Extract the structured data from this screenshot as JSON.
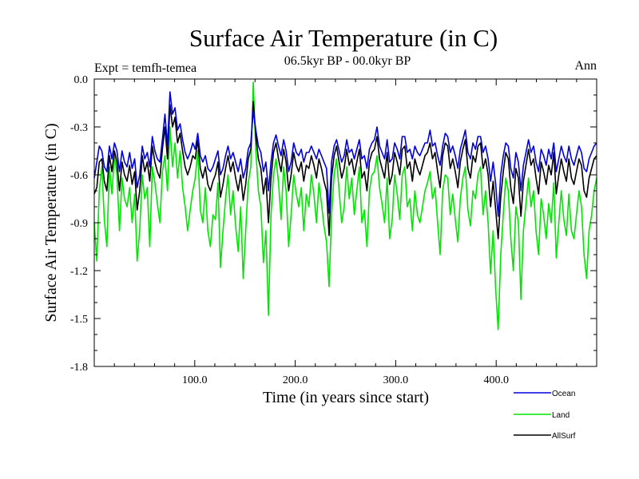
{
  "chart_data": {
    "type": "line",
    "title": "Surface Air Temperature (in C)",
    "subtitle_left": "Expt = temfh-temea",
    "subtitle_center": "06.5kyr BP - 00.0kyr BP",
    "subtitle_right": "Ann",
    "xlabel": "Time (in years since start)",
    "ylabel": "Surface Air Temperature (in C)",
    "xlim": [
      0,
      500
    ],
    "ylim": [
      -1.8,
      0.0
    ],
    "xticks": [
      100,
      200,
      300,
      400
    ],
    "xtick_labels": [
      "100.0",
      "200.0",
      "300.0",
      "400.0"
    ],
    "yticks": [
      0.0,
      -0.3,
      -0.6,
      -0.9,
      -1.2,
      -1.5,
      -1.8
    ],
    "ytick_labels": [
      "0.0",
      "-0.3",
      "-0.6",
      "-0.9",
      "-1.2",
      "-1.5",
      "-1.8"
    ],
    "series": [
      {
        "name": "Land",
        "color": "#00e600",
        "values": [
          -0.9,
          -1.14,
          -0.7,
          -0.55,
          -0.88,
          -1.05,
          -0.55,
          -0.72,
          -0.48,
          -0.6,
          -0.95,
          -0.62,
          -0.75,
          -0.8,
          -0.68,
          -0.9,
          -0.72,
          -1.14,
          -0.95,
          -0.6,
          -0.75,
          -0.68,
          -1.05,
          -0.55,
          -0.65,
          -0.78,
          -0.9,
          -0.58,
          -0.48,
          -0.7,
          -0.3,
          -0.55,
          -0.4,
          -0.62,
          -0.45,
          -0.68,
          -0.8,
          -0.95,
          -0.82,
          -0.7,
          -0.62,
          -0.45,
          -0.82,
          -0.9,
          -0.68,
          -0.95,
          -1.05,
          -0.85,
          -0.88,
          -0.65,
          -1.18,
          -0.95,
          -0.75,
          -0.6,
          -0.85,
          -0.7,
          -0.92,
          -1.08,
          -0.8,
          -1.25,
          -0.95,
          -0.65,
          -0.55,
          -0.02,
          -0.45,
          -0.7,
          -0.8,
          -1.15,
          -0.95,
          -1.48,
          -0.85,
          -0.6,
          -0.5,
          -0.65,
          -0.88,
          -0.55,
          -0.7,
          -1.05,
          -0.85,
          -0.6,
          -0.72,
          -0.8,
          -0.68,
          -0.95,
          -0.72,
          -0.8,
          -0.6,
          -0.72,
          -0.9,
          -0.65,
          -0.78,
          -0.92,
          -1.02,
          -1.3,
          -0.85,
          -0.6,
          -0.5,
          -0.7,
          -0.9,
          -0.8,
          -0.55,
          -0.75,
          -0.62,
          -0.85,
          -0.7,
          -0.55,
          -0.9,
          -0.82,
          -1.05,
          -0.7,
          -0.6,
          -0.58,
          -0.48,
          -0.68,
          -0.78,
          -0.9,
          -0.62,
          -1.0,
          -0.88,
          -0.6,
          -0.72,
          -0.88,
          -0.6,
          -0.55,
          -0.8,
          -0.75,
          -0.95,
          -0.7,
          -0.85,
          -0.9,
          -0.8,
          -0.7,
          -0.65,
          -0.58,
          -0.75,
          -0.68,
          -0.9,
          -1.1,
          -0.7,
          -0.6,
          -0.62,
          -0.85,
          -0.72,
          -0.88,
          -1.02,
          -0.75,
          -0.62,
          -0.55,
          -0.82,
          -0.92,
          -0.7,
          -0.75,
          -0.6,
          -0.55,
          -0.85,
          -0.7,
          -0.9,
          -1.22,
          -0.95,
          -1.32,
          -1.57,
          -1.1,
          -0.85,
          -0.62,
          -0.7,
          -1.0,
          -1.2,
          -0.8,
          -0.9,
          -1.38,
          -0.95,
          -0.78,
          -0.62,
          -0.8,
          -0.7,
          -0.95,
          -1.1,
          -0.75,
          -0.85,
          -1.0,
          -0.78,
          -0.9,
          -0.65,
          -1.12,
          -0.9,
          -0.7,
          -0.88,
          -0.98,
          -0.72,
          -0.95,
          -1.0,
          -0.85,
          -0.7,
          -0.8,
          -1.1,
          -1.25,
          -0.95,
          -0.85,
          -0.7,
          -0.62
        ]
      },
      {
        "name": "AllSurf",
        "color": "#000000",
        "values": [
          -0.72,
          -0.68,
          -0.52,
          -0.5,
          -0.64,
          -0.7,
          -0.48,
          -0.58,
          -0.45,
          -0.52,
          -0.7,
          -0.52,
          -0.6,
          -0.64,
          -0.54,
          -0.66,
          -0.58,
          -0.82,
          -0.7,
          -0.48,
          -0.58,
          -0.52,
          -0.64,
          -0.42,
          -0.52,
          -0.58,
          -0.62,
          -0.44,
          -0.3,
          -0.5,
          -0.16,
          -0.3,
          -0.24,
          -0.4,
          -0.34,
          -0.45,
          -0.55,
          -0.6,
          -0.55,
          -0.48,
          -0.5,
          -0.38,
          -0.56,
          -0.62,
          -0.55,
          -0.66,
          -0.7,
          -0.64,
          -0.6,
          -0.52,
          -0.74,
          -0.66,
          -0.56,
          -0.48,
          -0.58,
          -0.52,
          -0.62,
          -0.7,
          -0.6,
          -0.76,
          -0.66,
          -0.5,
          -0.44,
          -0.14,
          -0.36,
          -0.5,
          -0.56,
          -0.72,
          -0.62,
          -0.9,
          -0.62,
          -0.46,
          -0.4,
          -0.5,
          -0.58,
          -0.44,
          -0.52,
          -0.7,
          -0.6,
          -0.46,
          -0.54,
          -0.58,
          -0.52,
          -0.64,
          -0.54,
          -0.56,
          -0.48,
          -0.54,
          -0.62,
          -0.5,
          -0.56,
          -0.64,
          -0.7,
          -0.98,
          -0.62,
          -0.48,
          -0.42,
          -0.52,
          -0.62,
          -0.56,
          -0.44,
          -0.54,
          -0.5,
          -0.6,
          -0.52,
          -0.44,
          -0.62,
          -0.58,
          -0.7,
          -0.52,
          -0.46,
          -0.44,
          -0.36,
          -0.5,
          -0.56,
          -0.62,
          -0.46,
          -0.66,
          -0.6,
          -0.46,
          -0.52,
          -0.6,
          -0.44,
          -0.42,
          -0.56,
          -0.52,
          -0.64,
          -0.5,
          -0.56,
          -0.6,
          -0.54,
          -0.48,
          -0.46,
          -0.4,
          -0.5,
          -0.46,
          -0.58,
          -0.68,
          -0.48,
          -0.4,
          -0.42,
          -0.56,
          -0.5,
          -0.58,
          -0.68,
          -0.52,
          -0.44,
          -0.38,
          -0.56,
          -0.62,
          -0.48,
          -0.52,
          -0.42,
          -0.4,
          -0.56,
          -0.5,
          -0.6,
          -0.8,
          -0.64,
          -0.82,
          -1.0,
          -0.74,
          -0.58,
          -0.46,
          -0.5,
          -0.68,
          -0.78,
          -0.56,
          -0.62,
          -0.86,
          -0.64,
          -0.54,
          -0.44,
          -0.54,
          -0.5,
          -0.62,
          -0.72,
          -0.52,
          -0.58,
          -0.66,
          -0.54,
          -0.6,
          -0.46,
          -0.72,
          -0.6,
          -0.5,
          -0.58,
          -0.64,
          -0.5,
          -0.62,
          -0.66,
          -0.58,
          -0.5,
          -0.54,
          -0.7,
          -0.74,
          -0.62,
          -0.56,
          -0.5,
          -0.48
        ]
      },
      {
        "name": "Ocean",
        "color": "#0000dd",
        "values": [
          -0.62,
          -0.52,
          -0.42,
          -0.45,
          -0.55,
          -0.58,
          -0.42,
          -0.5,
          -0.4,
          -0.45,
          -0.58,
          -0.45,
          -0.52,
          -0.55,
          -0.46,
          -0.56,
          -0.5,
          -0.68,
          -0.6,
          -0.42,
          -0.5,
          -0.46,
          -0.55,
          -0.36,
          -0.45,
          -0.5,
          -0.52,
          -0.38,
          -0.22,
          -0.42,
          -0.08,
          -0.22,
          -0.18,
          -0.32,
          -0.28,
          -0.38,
          -0.46,
          -0.5,
          -0.46,
          -0.4,
          -0.44,
          -0.34,
          -0.48,
          -0.52,
          -0.48,
          -0.56,
          -0.58,
          -0.55,
          -0.5,
          -0.45,
          -0.6,
          -0.56,
          -0.48,
          -0.42,
          -0.5,
          -0.46,
          -0.52,
          -0.58,
          -0.5,
          -0.62,
          -0.56,
          -0.44,
          -0.4,
          -0.2,
          -0.32,
          -0.42,
          -0.46,
          -0.58,
          -0.52,
          -0.7,
          -0.52,
          -0.4,
          -0.35,
          -0.42,
          -0.48,
          -0.38,
          -0.45,
          -0.58,
          -0.52,
          -0.4,
          -0.46,
          -0.48,
          -0.44,
          -0.52,
          -0.46,
          -0.46,
          -0.42,
          -0.46,
          -0.5,
          -0.44,
          -0.48,
          -0.52,
          -0.56,
          -0.84,
          -0.52,
          -0.42,
          -0.38,
          -0.45,
          -0.52,
          -0.48,
          -0.38,
          -0.46,
          -0.44,
          -0.5,
          -0.44,
          -0.38,
          -0.5,
          -0.48,
          -0.56,
          -0.44,
          -0.4,
          -0.38,
          -0.3,
          -0.42,
          -0.46,
          -0.5,
          -0.38,
          -0.52,
          -0.5,
          -0.4,
          -0.44,
          -0.5,
          -0.36,
          -0.36,
          -0.46,
          -0.44,
          -0.5,
          -0.42,
          -0.46,
          -0.48,
          -0.44,
          -0.4,
          -0.4,
          -0.32,
          -0.42,
          -0.4,
          -0.48,
          -0.54,
          -0.42,
          -0.34,
          -0.36,
          -0.46,
          -0.42,
          -0.48,
          -0.56,
          -0.44,
          -0.38,
          -0.32,
          -0.46,
          -0.5,
          -0.4,
          -0.44,
          -0.36,
          -0.36,
          -0.46,
          -0.42,
          -0.5,
          -0.64,
          -0.52,
          -0.66,
          -0.86,
          -0.6,
          -0.48,
          -0.4,
          -0.42,
          -0.56,
          -0.62,
          -0.46,
          -0.52,
          -0.7,
          -0.54,
          -0.46,
          -0.38,
          -0.46,
          -0.42,
          -0.52,
          -0.58,
          -0.44,
          -0.48,
          -0.54,
          -0.44,
          -0.5,
          -0.4,
          -0.58,
          -0.5,
          -0.42,
          -0.48,
          -0.52,
          -0.42,
          -0.5,
          -0.54,
          -0.48,
          -0.42,
          -0.46,
          -0.56,
          -0.58,
          -0.5,
          -0.46,
          -0.42,
          -0.4
        ]
      }
    ],
    "legend": {
      "position": "bottom-right",
      "entries": [
        {
          "label": "Ocean",
          "color": "#0000dd"
        },
        {
          "label": "Land",
          "color": "#00e600"
        },
        {
          "label": "AllSurf",
          "color": "#000000"
        }
      ]
    }
  }
}
